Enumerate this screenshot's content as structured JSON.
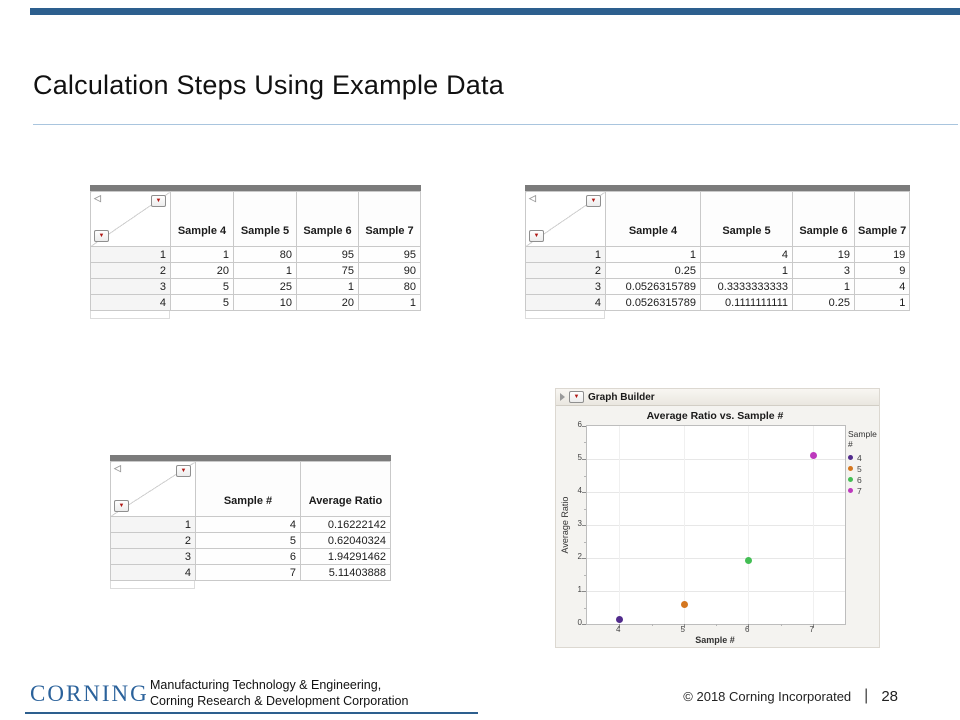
{
  "slide": {
    "title": "Calculation Steps Using Example Data",
    "accent_color": "#2d5f8e",
    "footer": {
      "logo_text": "CORNING",
      "org_line1": "Manufacturing Technology & Engineering,",
      "org_line2": "Corning Research & Development Corporation",
      "copyright": "© 2018 Corning Incorporated",
      "separator": "|",
      "page_number": "28"
    }
  },
  "icons": {
    "dropdown": "▼",
    "columns_panel": "◁",
    "disclosure": "disclosure-triangle"
  },
  "tables": {
    "raw_counts": {
      "columns": [
        "Sample 4",
        "Sample 5",
        "Sample 6",
        "Sample 7"
      ],
      "rows": [
        {
          "n": "1",
          "values": [
            "1",
            "80",
            "95",
            "95"
          ]
        },
        {
          "n": "2",
          "values": [
            "20",
            "1",
            "75",
            "90"
          ]
        },
        {
          "n": "3",
          "values": [
            "5",
            "25",
            "1",
            "80"
          ]
        },
        {
          "n": "4",
          "values": [
            "5",
            "10",
            "20",
            "1"
          ]
        }
      ]
    },
    "ratios": {
      "columns": [
        "Sample 4",
        "Sample 5",
        "Sample 6",
        "Sample 7"
      ],
      "rows": [
        {
          "n": "1",
          "values": [
            "1",
            "4",
            "19",
            "19"
          ]
        },
        {
          "n": "2",
          "values": [
            "0.25",
            "1",
            "3",
            "9"
          ]
        },
        {
          "n": "3",
          "values": [
            "0.0526315789",
            "0.3333333333",
            "1",
            "4"
          ]
        },
        {
          "n": "4",
          "values": [
            "0.0526315789",
            "0.1111111111",
            "0.25",
            "1"
          ]
        }
      ]
    },
    "averages": {
      "columns": [
        "Sample #",
        "Average Ratio"
      ],
      "rows": [
        {
          "n": "1",
          "values": [
            "4",
            "0.16222142"
          ]
        },
        {
          "n": "2",
          "values": [
            "5",
            "0.62040324"
          ]
        },
        {
          "n": "3",
          "values": [
            "6",
            "1.94291462"
          ]
        },
        {
          "n": "4",
          "values": [
            "7",
            "5.11403888"
          ]
        }
      ]
    }
  },
  "chart": {
    "panel_title": "Graph Builder"
  },
  "chart_data": {
    "type": "scatter",
    "title": "Average Ratio vs. Sample #",
    "xlabel": "Sample #",
    "ylabel": "Average Ratio",
    "legend_title": "Sample #",
    "legend_position": "right",
    "grid": true,
    "xlim": [
      3.5,
      7.5
    ],
    "ylim": [
      0,
      6
    ],
    "x_ticks": [
      4,
      5,
      6,
      7
    ],
    "y_ticks": [
      0,
      1,
      2,
      3,
      4,
      5,
      6
    ],
    "series": [
      {
        "name": "4",
        "color": "#512b8c",
        "points": [
          [
            4,
            0.16222142
          ]
        ]
      },
      {
        "name": "5",
        "color": "#d4761f",
        "points": [
          [
            5,
            0.62040324
          ]
        ]
      },
      {
        "name": "6",
        "color": "#43be54",
        "points": [
          [
            6,
            1.94291462
          ]
        ]
      },
      {
        "name": "7",
        "color": "#bd39bd",
        "points": [
          [
            7,
            5.11403888
          ]
        ]
      }
    ]
  }
}
